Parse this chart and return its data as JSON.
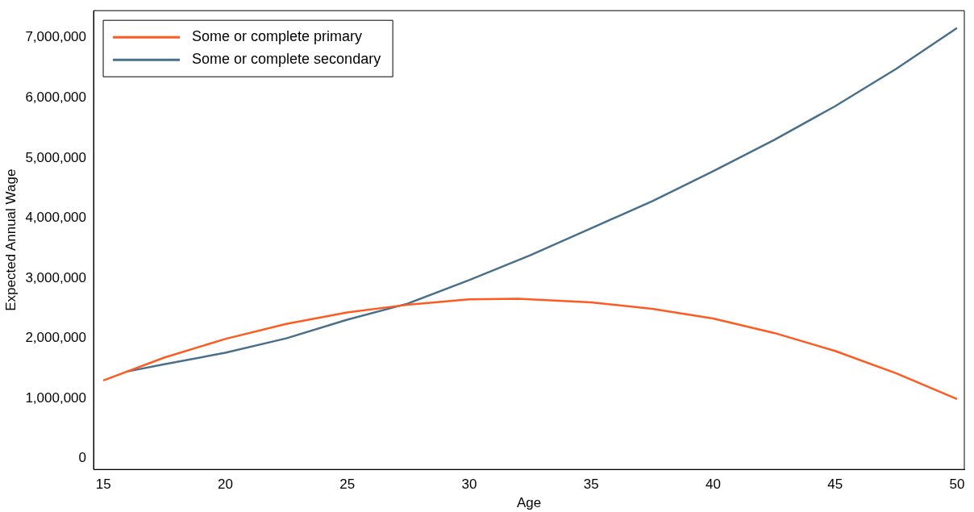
{
  "chart_data": {
    "type": "line",
    "xlabel": "Age",
    "ylabel": "Expected Annual Wage",
    "xlim": [
      14.6,
      50.3
    ],
    "xticks": [
      15,
      20,
      25,
      30,
      35,
      40,
      45,
      50
    ],
    "ylim": [
      -180000,
      7450000
    ],
    "yticks": [
      0,
      {
        "value": 1000000,
        "label": "1,000,000"
      },
      {
        "value": 2000000,
        "label": "2,000,000"
      },
      {
        "value": 3000000,
        "label": "3,000,000"
      },
      {
        "value": 4000000,
        "label": "4,000,000"
      },
      {
        "value": 5000000,
        "label": "5,000,000"
      },
      {
        "value": 6000000,
        "label": "6,000,000"
      },
      {
        "value": 7000000,
        "label": "7,000,000"
      }
    ],
    "grid": false,
    "legend": "top left",
    "marker": "none",
    "line_style": "solid",
    "series": [
      {
        "name": "Some or complete primary",
        "color": "#ff5a1f",
        "x": [
          15,
          17.5,
          20,
          22.5,
          25,
          27.5,
          30,
          32,
          35,
          37.5,
          40,
          42.5,
          45,
          47.5,
          50
        ],
        "values": [
          1300000,
          1680000,
          1990000,
          2240000,
          2430000,
          2560000,
          2650000,
          2660000,
          2600000,
          2490000,
          2330000,
          2090000,
          1790000,
          1420000,
          990000
        ]
      },
      {
        "name": "Some or complete secondary",
        "color": "#4a6f8a",
        "x": [
          16,
          17.5,
          20,
          22.5,
          25,
          27.5,
          30,
          32.5,
          35,
          37.5,
          40,
          42.5,
          45,
          47.5,
          50
        ],
        "values": [
          1450000,
          1570000,
          1760000,
          2000000,
          2310000,
          2580000,
          2970000,
          3380000,
          3830000,
          4280000,
          4780000,
          5300000,
          5860000,
          6480000,
          7160000
        ]
      }
    ]
  }
}
